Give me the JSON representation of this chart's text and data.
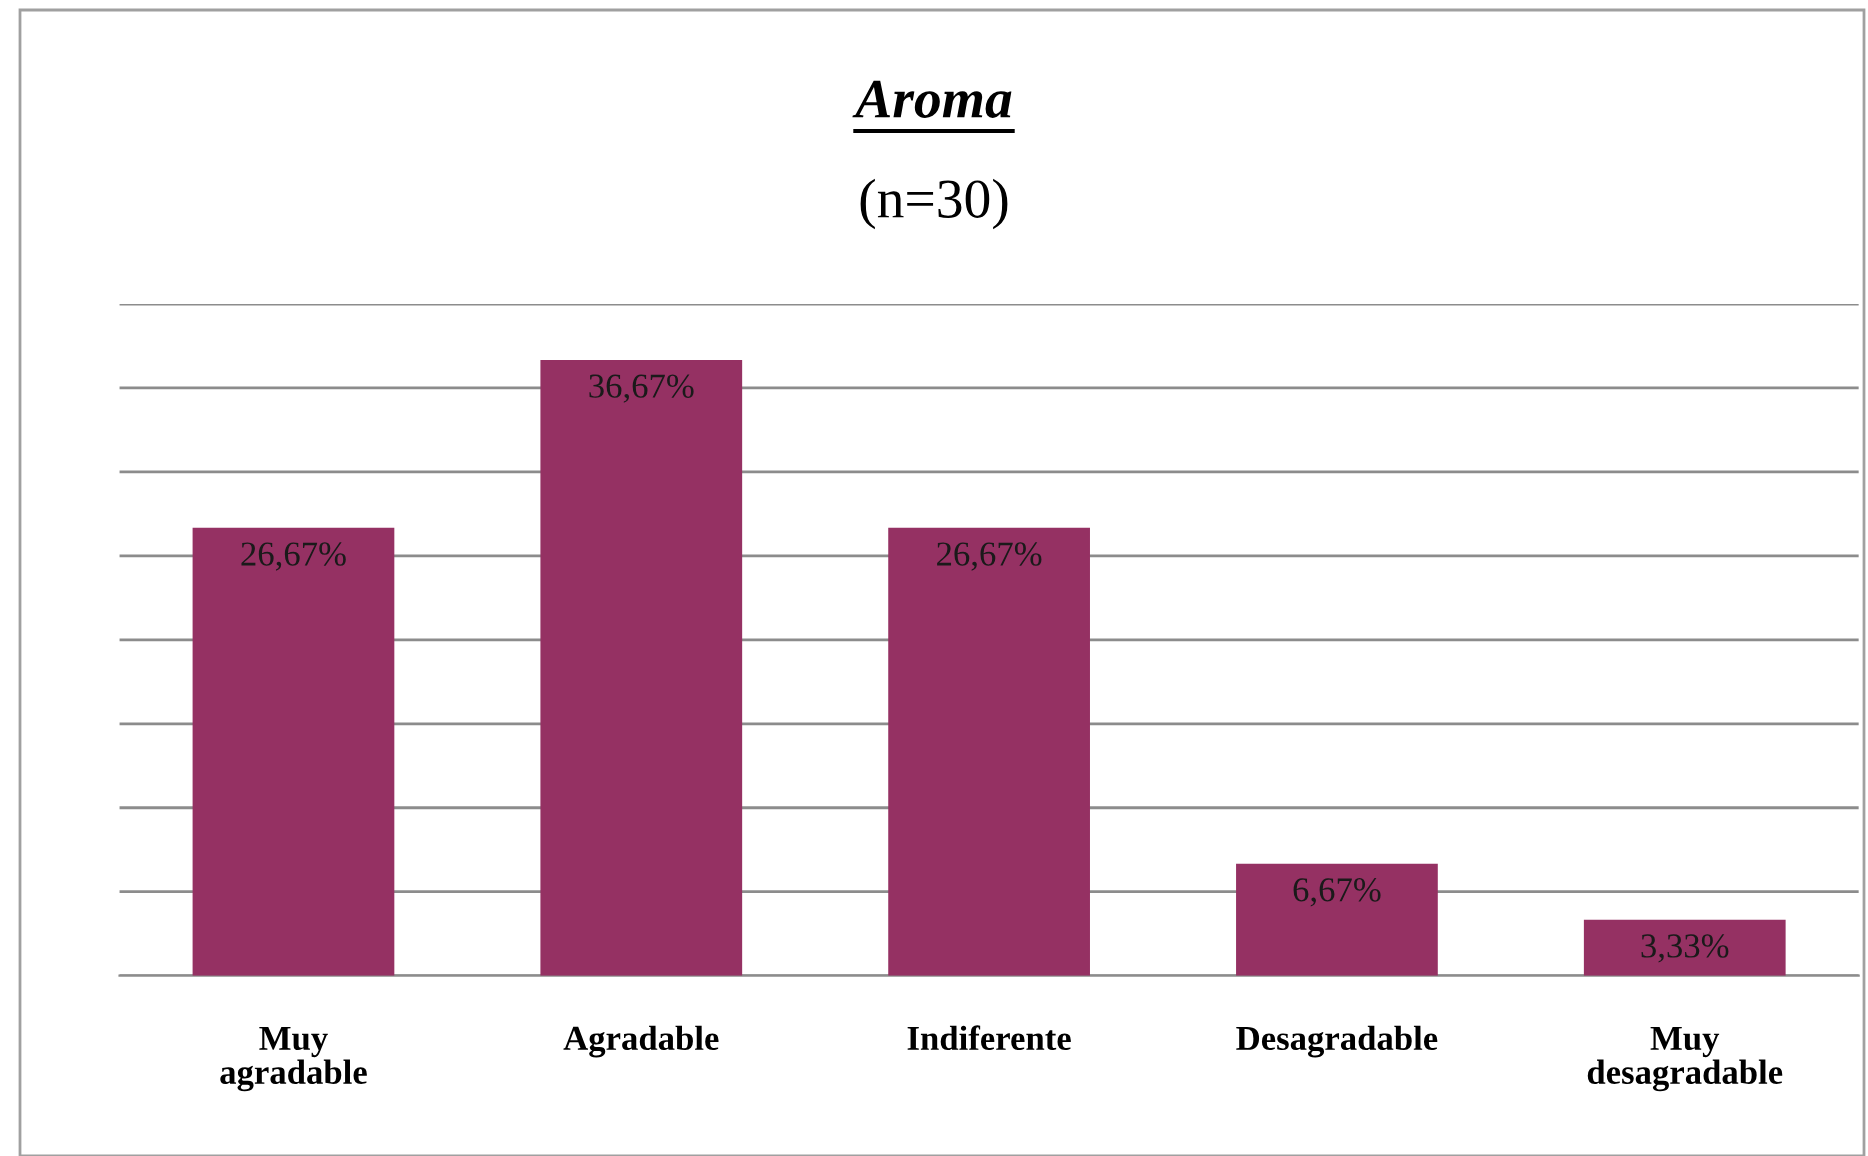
{
  "chart_data": {
    "type": "bar",
    "title": "Aroma",
    "subtitle": "(n=30)",
    "categories": [
      "Muy agradable",
      "Agradable",
      "Indiferente",
      "Desagradable",
      "Muy desagradable"
    ],
    "values": [
      26.67,
      36.67,
      26.67,
      6.67,
      3.33
    ],
    "value_labels": [
      "26,67%",
      "36,67%",
      "26,67%",
      "6,67%",
      "3,33%"
    ],
    "color": "#953163",
    "ylim": [
      0,
      40
    ],
    "yticks": [
      {
        "value": 0,
        "label": null
      },
      {
        "value": 5,
        "label": null
      },
      {
        "value": 10,
        "label": null
      },
      {
        "value": 15,
        "label": null
      },
      {
        "value": 20,
        "label": null
      },
      {
        "value": 25,
        "label": null
      },
      {
        "value": 30,
        "label": null
      },
      {
        "value": 35,
        "label": null
      },
      {
        "value": 40,
        "label": null
      }
    ],
    "grid": "y",
    "tick_labels": "x",
    "legend": false
  }
}
